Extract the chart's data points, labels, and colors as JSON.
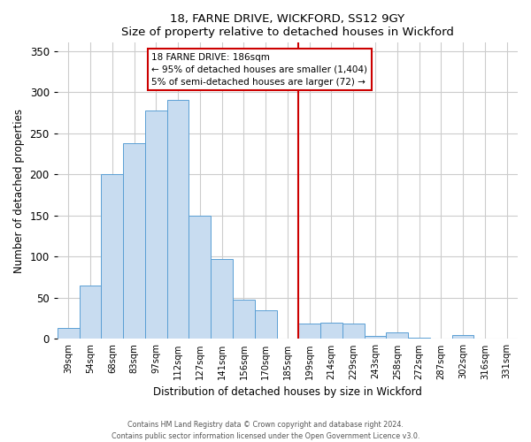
{
  "title": "18, FARNE DRIVE, WICKFORD, SS12 9GY",
  "subtitle": "Size of property relative to detached houses in Wickford",
  "xlabel": "Distribution of detached houses by size in Wickford",
  "ylabel": "Number of detached properties",
  "bar_labels": [
    "39sqm",
    "54sqm",
    "68sqm",
    "83sqm",
    "97sqm",
    "112sqm",
    "127sqm",
    "141sqm",
    "156sqm",
    "170sqm",
    "185sqm",
    "199sqm",
    "214sqm",
    "229sqm",
    "243sqm",
    "258sqm",
    "272sqm",
    "287sqm",
    "302sqm",
    "316sqm",
    "331sqm"
  ],
  "bar_values": [
    13,
    65,
    200,
    238,
    278,
    290,
    150,
    97,
    48,
    35,
    0,
    19,
    20,
    19,
    4,
    8,
    2,
    0,
    5,
    0,
    0
  ],
  "bar_color": "#c8dcf0",
  "bar_edge_color": "#5a9fd4",
  "vline_color": "#cc0000",
  "annotation_title": "18 FARNE DRIVE: 186sqm",
  "annotation_line1": "← 95% of detached houses are smaller (1,404)",
  "annotation_line2": "5% of semi-detached houses are larger (72) →",
  "ylim": [
    0,
    360
  ],
  "yticks": [
    0,
    50,
    100,
    150,
    200,
    250,
    300,
    350
  ],
  "footer_line1": "Contains HM Land Registry data © Crown copyright and database right 2024.",
  "footer_line2": "Contains public sector information licensed under the Open Government Licence v3.0.",
  "bg_color": "#ffffff",
  "grid_color": "#cccccc"
}
